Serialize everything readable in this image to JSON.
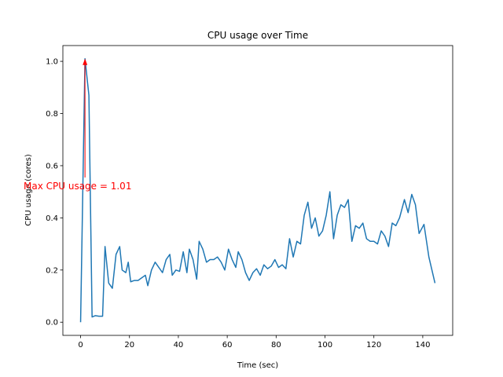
{
  "chart_data": {
    "type": "line",
    "title": "CPU usage over Time",
    "xlabel": "Time (sec)",
    "ylabel": "CPU usage (cores)",
    "x": [
      0,
      1.8,
      3.4,
      4.7,
      6,
      7.5,
      9,
      10,
      11.5,
      13,
      14.5,
      16,
      17,
      18.5,
      19.5,
      20.5,
      22,
      23.5,
      25,
      26.5,
      27.5,
      29,
      30.5,
      32,
      33.5,
      35,
      36.5,
      37.5,
      39,
      40.5,
      42,
      43.5,
      44.5,
      46,
      47.5,
      48.5,
      50,
      51.5,
      53,
      54.5,
      56,
      57.5,
      59,
      60.5,
      62,
      63.5,
      64.5,
      66,
      67.5,
      69,
      70.5,
      72,
      73.5,
      75,
      76.5,
      78,
      79.5,
      81,
      82.5,
      84,
      85.5,
      87,
      88.5,
      90,
      91.5,
      93,
      94.5,
      96,
      97.5,
      99,
      100.5,
      102,
      103.5,
      105,
      106.5,
      108,
      109.5,
      111,
      112.5,
      114,
      115.5,
      117,
      118.5,
      120,
      121.5,
      123,
      124.5,
      126,
      127.5,
      129,
      130.5,
      132.5,
      134,
      135.5,
      137,
      138.5,
      140.5,
      142.5,
      145
    ],
    "series": [
      {
        "name": "CPU usage",
        "color": "#1f77b4",
        "values": [
          0.0,
          1.01,
          0.87,
          0.02,
          0.025,
          0.023,
          0.023,
          0.29,
          0.15,
          0.13,
          0.26,
          0.29,
          0.2,
          0.19,
          0.23,
          0.155,
          0.16,
          0.16,
          0.17,
          0.18,
          0.14,
          0.2,
          0.23,
          0.21,
          0.19,
          0.24,
          0.26,
          0.18,
          0.2,
          0.195,
          0.27,
          0.19,
          0.28,
          0.24,
          0.165,
          0.31,
          0.28,
          0.23,
          0.24,
          0.24,
          0.25,
          0.23,
          0.2,
          0.28,
          0.24,
          0.21,
          0.27,
          0.24,
          0.19,
          0.16,
          0.19,
          0.205,
          0.18,
          0.22,
          0.205,
          0.215,
          0.24,
          0.21,
          0.22,
          0.205,
          0.32,
          0.25,
          0.31,
          0.3,
          0.41,
          0.46,
          0.36,
          0.4,
          0.33,
          0.35,
          0.41,
          0.5,
          0.32,
          0.41,
          0.45,
          0.44,
          0.47,
          0.31,
          0.37,
          0.36,
          0.38,
          0.32,
          0.31,
          0.31,
          0.3,
          0.35,
          0.33,
          0.29,
          0.38,
          0.37,
          0.4,
          0.47,
          0.42,
          0.49,
          0.45,
          0.34,
          0.375,
          0.25,
          0.15
        ]
      }
    ],
    "annotation": {
      "text": "Max CPU usage = 1.01",
      "x": 1.8,
      "y": 1.01,
      "color": "#ff0000"
    },
    "xlim": [
      -7.25,
      152.25
    ],
    "xticks": [
      0,
      20,
      40,
      60,
      80,
      100,
      120,
      140
    ],
    "ylim": [
      -0.0505,
      1.0605
    ],
    "yticks": [
      {
        "value": 0,
        "label": "0.0"
      },
      {
        "value": 0.2,
        "label": "0.2"
      },
      {
        "value": 0.4,
        "label": "0.4"
      },
      {
        "value": 0.6,
        "label": "0.6"
      },
      {
        "value": 0.8,
        "label": "0.8"
      },
      {
        "value": 1,
        "label": "1.0"
      }
    ]
  }
}
